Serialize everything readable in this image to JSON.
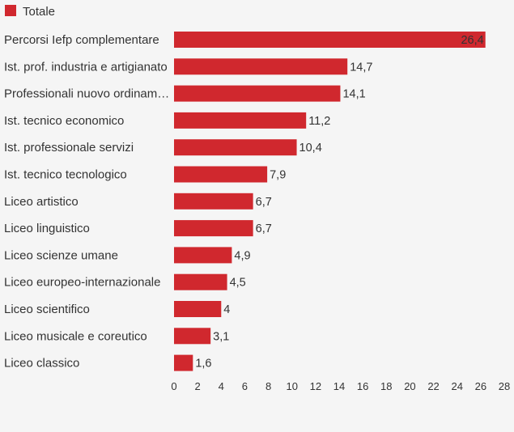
{
  "chart_data": {
    "type": "bar",
    "orientation": "horizontal",
    "categories": [
      "Percorsi Iefp complementare",
      "Ist. prof. industria e artigianato",
      "Professionali nuovo ordinam…",
      "Ist. tecnico economico",
      "Ist. professionale servizi",
      "Ist. tecnico tecnologico",
      "Liceo artistico",
      "Liceo linguistico",
      "Liceo scienze umane",
      "Liceo europeo-internazionale",
      "Liceo scientifico",
      "Liceo musicale e coreutico",
      "Liceo classico"
    ],
    "series": [
      {
        "name": "Totale",
        "values": [
          26.4,
          14.7,
          14.1,
          11.2,
          10.4,
          7.9,
          6.7,
          6.7,
          4.9,
          4.5,
          4,
          3.1,
          1.6
        ],
        "value_labels": [
          "26,4",
          "14,7",
          "14,1",
          "11,2",
          "10,4",
          "7,9",
          "6,7",
          "6,7",
          "4,9",
          "4,5",
          "4",
          "3,1",
          "1,6"
        ],
        "color": "#d0282e"
      }
    ],
    "x_ticks": [
      0,
      2,
      4,
      6,
      8,
      10,
      12,
      14,
      16,
      18,
      20,
      22,
      24,
      26,
      28
    ],
    "xlim": [
      0,
      28
    ],
    "grid": false,
    "legend": "top-left",
    "title": "",
    "xlabel": "",
    "ylabel": ""
  }
}
